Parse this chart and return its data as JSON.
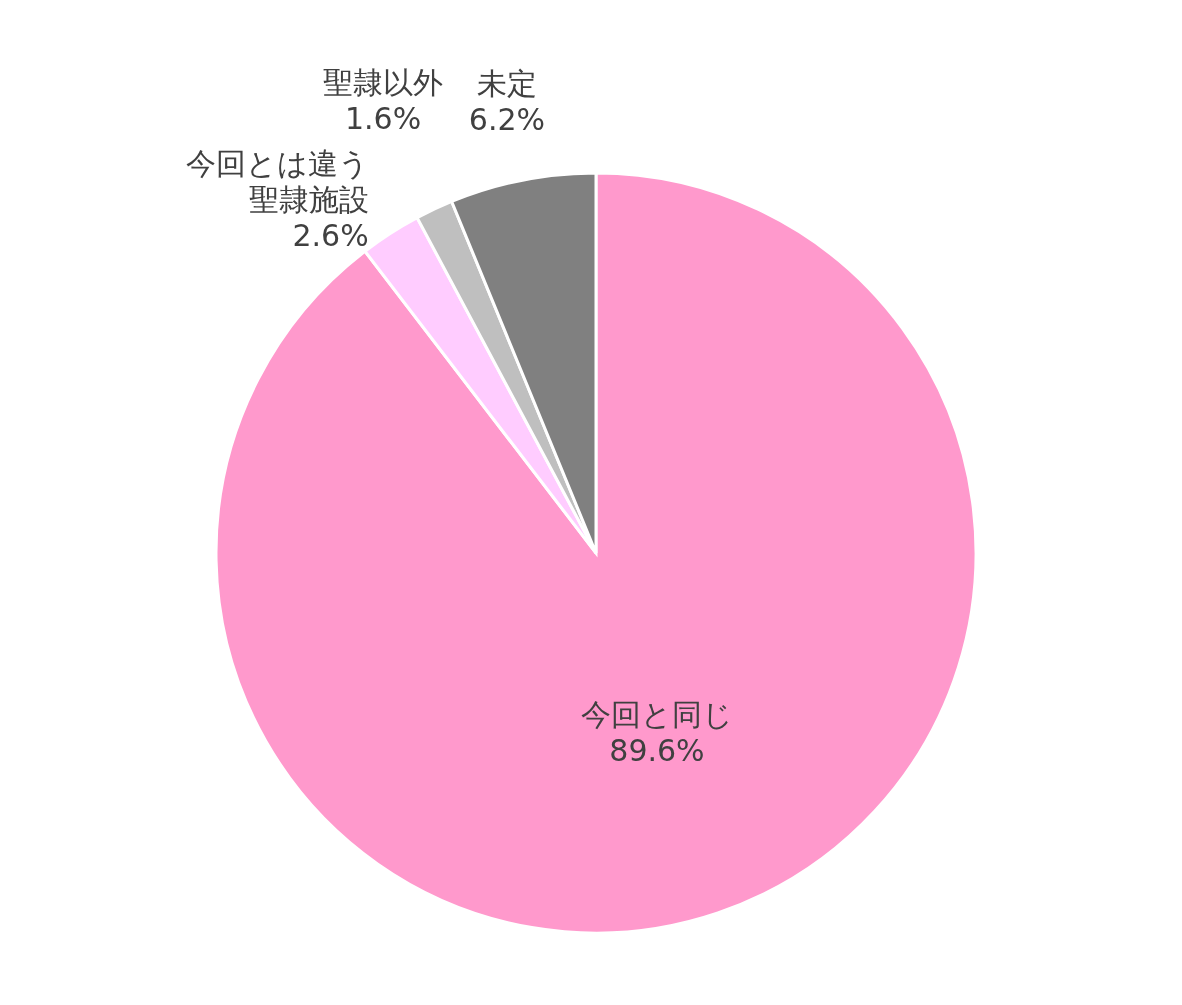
{
  "chart_data": {
    "type": "pie",
    "categories": [
      "今回と同じ",
      "今回とは違う聖隷施設",
      "聖隷以外",
      "未定"
    ],
    "values": [
      89.6,
      2.6,
      1.6,
      6.2
    ],
    "colors": [
      "#ff99cc",
      "#ffccff",
      "#bfbfbf",
      "#808080"
    ],
    "value_labels": [
      "89.6%",
      "2.6%",
      "1.6%",
      "6.2%"
    ],
    "legend": false
  }
}
